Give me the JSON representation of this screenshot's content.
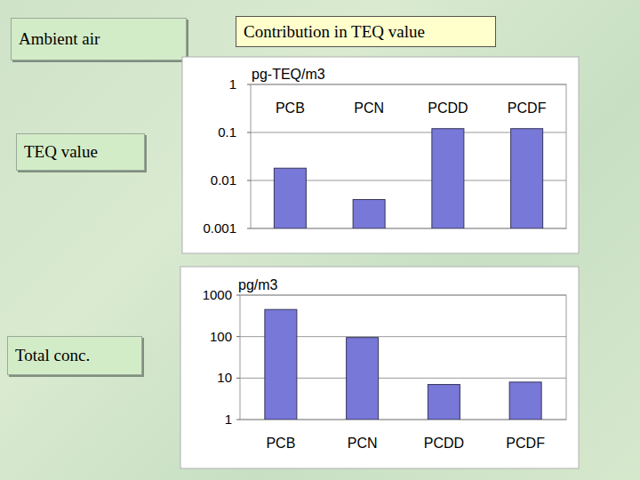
{
  "slide": {
    "heading": "Ambient air",
    "title": "Contribution in TEQ value",
    "row_labels": [
      "TEQ value",
      "Total conc."
    ]
  },
  "chart_data": [
    {
      "type": "bar",
      "y_label": "pg-TEQ/m3",
      "categories": [
        "PCB",
        "PCN",
        "PCDD",
        "PCDF"
      ],
      "values": [
        0.018,
        0.004,
        0.12,
        0.12
      ],
      "color": "#7878d8",
      "log": "y",
      "ylim": [
        0.001,
        1
      ],
      "yticks": [
        0.001,
        0.01,
        0.1,
        1
      ],
      "grid": true
    },
    {
      "type": "bar",
      "y_label": "pg/m3",
      "categories": [
        "PCB",
        "PCN",
        "PCDD",
        "PCDF"
      ],
      "values": [
        450,
        95,
        7,
        8
      ],
      "color": "#7878d8",
      "log": "y",
      "ylim": [
        1,
        1000
      ],
      "yticks": [
        1,
        10,
        100,
        1000
      ],
      "grid": true
    }
  ]
}
